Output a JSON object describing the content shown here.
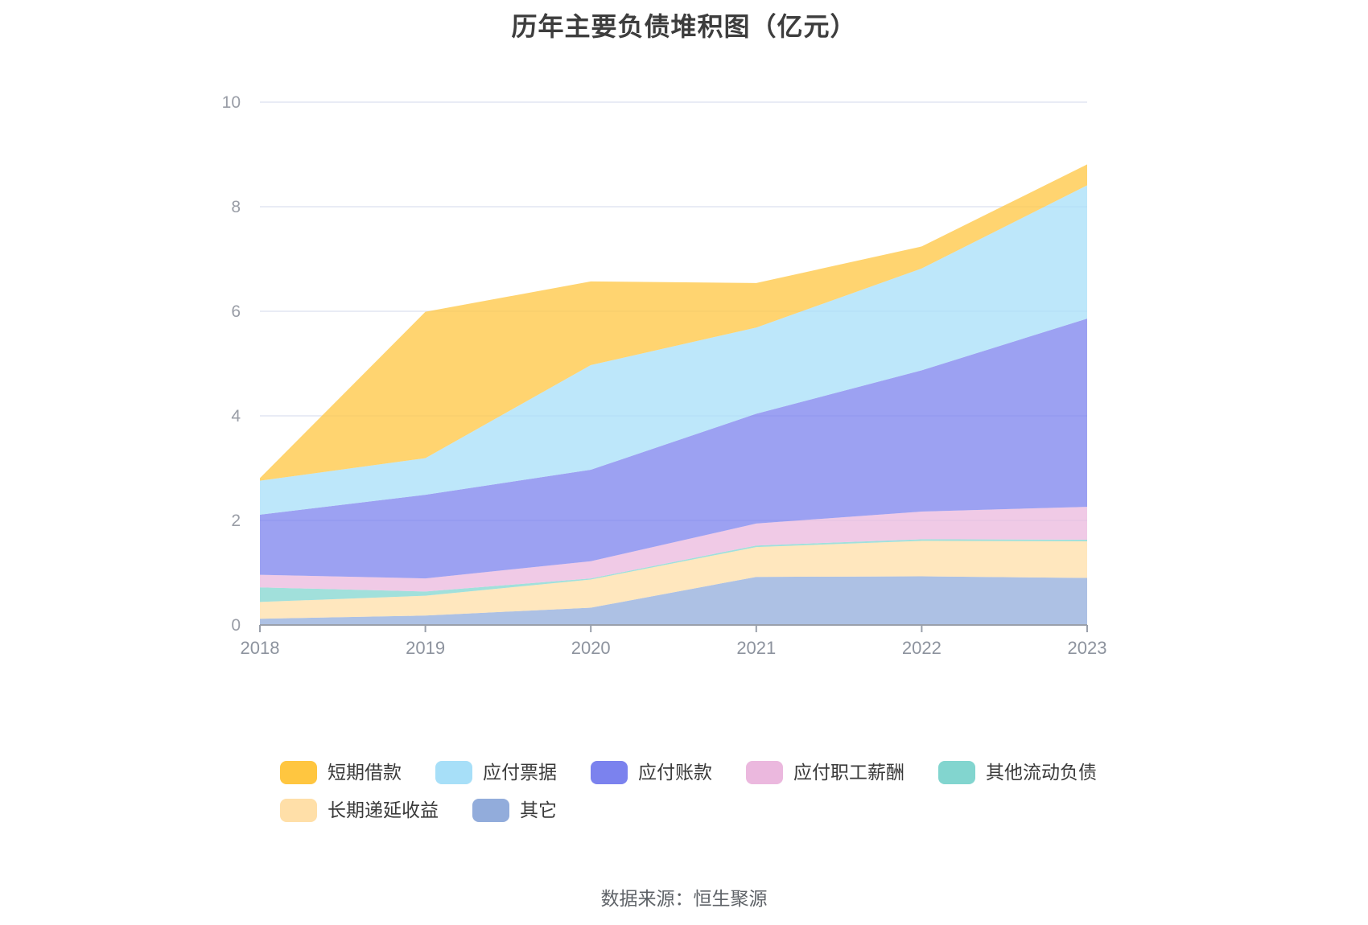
{
  "title": "历年主要负债堆积图（亿元）",
  "source": "数据来源：恒生聚源",
  "chart_data": {
    "type": "area",
    "stacked": true,
    "title": "历年主要负债堆积图（亿元）",
    "xlabel": "",
    "ylabel": "",
    "x": [
      "2018",
      "2019",
      "2020",
      "2021",
      "2022",
      "2023"
    ],
    "yticks": [
      "0",
      "2",
      "4",
      "6",
      "8",
      "10"
    ],
    "ytick_values": [
      0,
      2,
      4,
      6,
      8,
      10
    ],
    "ylim": [
      0,
      10
    ],
    "grid": true,
    "legend_position": "bottom",
    "area_opacity": 0.75,
    "stack_note": "series listed in legend order; stacked bottom-to-top in reverse order (last series at bottom)",
    "series": [
      {
        "id": "short-term-borrowings",
        "name": "短期借款",
        "color": "#FFC640",
        "values": [
          0.05,
          2.8,
          1.6,
          0.85,
          0.42,
          0.4
        ]
      },
      {
        "id": "notes-payable",
        "name": "应付票据",
        "color": "#A7DFF8",
        "values": [
          0.65,
          0.7,
          2.0,
          1.65,
          1.95,
          2.55
        ]
      },
      {
        "id": "accounts-payable",
        "name": "应付账款",
        "color": "#7B82EE",
        "values": [
          1.15,
          1.6,
          1.75,
          2.1,
          2.7,
          3.6
        ]
      },
      {
        "id": "employee-compensation",
        "name": "应付职工薪酬",
        "color": "#EBB8DE",
        "values": [
          0.24,
          0.25,
          0.33,
          0.42,
          0.53,
          0.63
        ]
      },
      {
        "id": "other-current-liabilities",
        "name": "其他流动负债",
        "color": "#82D5CF",
        "values": [
          0.28,
          0.08,
          0.02,
          0.03,
          0.03,
          0.03
        ]
      },
      {
        "id": "long-term-deferred-income",
        "name": "长期递延收益",
        "color": "#FFDFA8",
        "values": [
          0.32,
          0.38,
          0.54,
          0.57,
          0.68,
          0.7
        ]
      },
      {
        "id": "others",
        "name": "其它",
        "color": "#92ACDB",
        "values": [
          0.12,
          0.18,
          0.33,
          0.92,
          0.93,
          0.9
        ]
      }
    ],
    "legend_rows": [
      5,
      2
    ]
  },
  "colors": {
    "gridline": "#e2e6f2",
    "axis": "#9aa0ab",
    "tick_label": "#999da6",
    "title_text": "#3d3d3d",
    "source_text": "#5f6368"
  }
}
